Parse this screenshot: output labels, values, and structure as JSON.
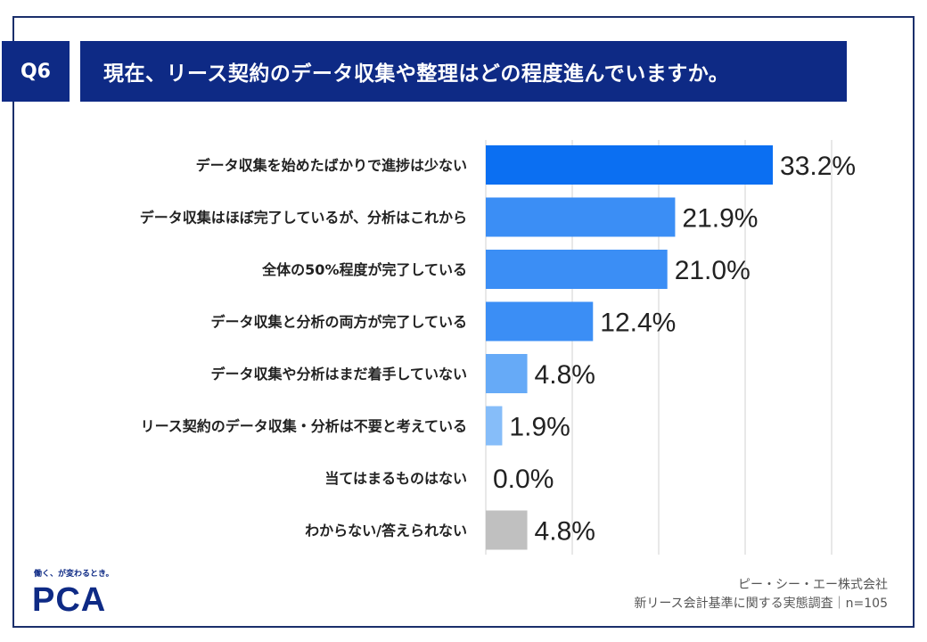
{
  "question": {
    "badge": "Q6",
    "title": "現在、リース契約のデータ収集や整理はどの程度進んでいますか。"
  },
  "footer": {
    "logo_tagline": "働く、が変わるとき。",
    "logo_text": "PCA",
    "company": "ピー・シー・エー株式会社",
    "survey": "新リース会計基準に関する実態調査｜n=105"
  },
  "colors": {
    "navy": "#0e2a85",
    "bars": [
      "#0b6ff2",
      "#3b8ef5",
      "#3b8ef5",
      "#3b8ef5",
      "#66aaf7",
      "#86bdf9",
      "#86bdf9",
      "#c0c0c0"
    ],
    "grid": "#d0d0d0"
  },
  "chart_data": {
    "type": "bar",
    "orientation": "horizontal",
    "categories": [
      "データ収集を始めたばかりで進捗は少ない",
      "データ収集はほぼ完了しているが、分析はこれから",
      "全体の50%程度が完了している",
      "データ収集と分析の両方が完了している",
      "データ収集や分析はまだ着手していない",
      "リース契約のデータ収集・分析は不要と考えている",
      "当てはまるものはない",
      "わからない/答えられない"
    ],
    "values": [
      33.2,
      21.9,
      21.0,
      12.4,
      4.8,
      1.9,
      0.0,
      4.8
    ],
    "value_labels": [
      "33.2%",
      "21.9%",
      "21.0%",
      "12.4%",
      "4.8%",
      "1.9%",
      "0.0%",
      "4.8%"
    ],
    "xlim": [
      0,
      50
    ],
    "grid": true
  }
}
